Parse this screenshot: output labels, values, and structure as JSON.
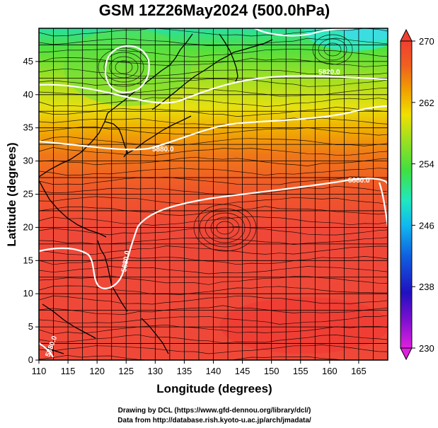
{
  "title": "GSM 12Z26May2024 (500.0hPa)",
  "x_axis": {
    "label": "Longitude (degrees)",
    "ticks": [
      110,
      115,
      120,
      125,
      130,
      135,
      140,
      145,
      150,
      155,
      160,
      165
    ],
    "range": [
      110,
      170
    ]
  },
  "y_axis": {
    "label": "Latitude  (degrees)",
    "ticks": [
      0,
      5,
      10,
      15,
      20,
      25,
      30,
      35,
      40,
      45
    ],
    "range": [
      0,
      50
    ]
  },
  "colorbar": {
    "ticks": [
      270,
      262,
      254,
      246,
      238,
      230
    ],
    "range": [
      230,
      270
    ],
    "colors": [
      "#e020e0",
      "#7a10d0",
      "#2010c0",
      "#1060e0",
      "#10b8f0",
      "#20e8c0",
      "#40e040",
      "#a0e020",
      "#f0e000",
      "#f0a000",
      "#f06020",
      "#f04030"
    ]
  },
  "contour_labels": [
    "5820.0",
    "5880.0",
    "5880.0",
    "5880.0",
    "5880.0"
  ],
  "credits": {
    "line1": "Drawing by DCL (https://www.gfd-dennou.org/library/dcl/)",
    "line2": "Data from http://database.rish.kyoto-u.ac.jp/arch/jmadata/"
  }
}
